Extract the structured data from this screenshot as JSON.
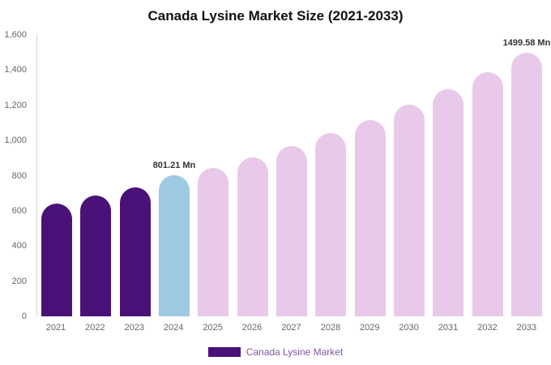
{
  "title": "Canada Lysine Market Size (2021-2033)",
  "legend": {
    "label": "Canada Lysine Market",
    "swatch_color": "#4a1278"
  },
  "colors": {
    "historical_bar": "#4a1278",
    "current_year_bar": "#9ec9e2",
    "forecast_bar": "#e9c9e9",
    "axis_text": "#666666",
    "title_text": "#111111"
  },
  "chart_data": {
    "type": "bar",
    "title": "Canada Lysine Market Size (2021-2033)",
    "xlabel": "",
    "ylabel": "",
    "categories": [
      "2021",
      "2022",
      "2023",
      "2024",
      "2025",
      "2026",
      "2027",
      "2028",
      "2029",
      "2030",
      "2031",
      "2032",
      "2033"
    ],
    "values": [
      640,
      685,
      732,
      801.21,
      845,
      905,
      968,
      1042,
      1118,
      1203,
      1290,
      1388,
      1499.58
    ],
    "bar_colors": [
      "#4a1278",
      "#4a1278",
      "#4a1278",
      "#9ec9e2",
      "#e9c9e9",
      "#e9c9e9",
      "#e9c9e9",
      "#e9c9e9",
      "#e9c9e9",
      "#e9c9e9",
      "#e9c9e9",
      "#e9c9e9",
      "#e9c9e9"
    ],
    "annotations": [
      {
        "index": 3,
        "label": "801.21 Mn"
      },
      {
        "index": 12,
        "label": "1499.58 Mn"
      }
    ],
    "ylim": [
      0,
      1600
    ],
    "yticks": [
      0,
      200,
      400,
      600,
      800,
      1000,
      1200,
      1400,
      1600
    ],
    "grid": false,
    "legend_position": "bottom",
    "legend_entries": [
      "Canada Lysine Market"
    ]
  }
}
